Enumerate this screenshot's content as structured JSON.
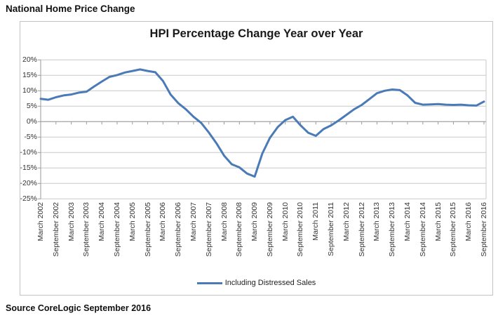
{
  "page": {
    "header_title": "National Home Price Change",
    "source_note": "Source CoreLogic September 2016"
  },
  "legend": {
    "label": "Including Distressed Sales"
  },
  "colors": {
    "series_line": "#4a7bb7",
    "gridline": "#c9c9c9",
    "axis": "#9a9a9a",
    "frame_border": "#c3c3c3",
    "text": "#333333"
  },
  "chart_data": {
    "type": "line",
    "title": "HPI Percentage Change Year over Year",
    "legend_position": "bottom",
    "grid": true,
    "ylim": [
      -25,
      20
    ],
    "y_tick_step": 5,
    "y_axis_format": "percent",
    "y_tick_labels": [
      "20%",
      "15%",
      "10%",
      "5%",
      "0%",
      "-5%",
      "-10%",
      "-15%",
      "-20%",
      "-25%"
    ],
    "x_tick_labels": [
      "March 2002",
      "September 2002",
      "March 2003",
      "September 2003",
      "March 2004",
      "September 2004",
      "March 2005",
      "September 2005",
      "March 2006",
      "September 2006",
      "March 2007",
      "September 2007",
      "March 2008",
      "September 2008",
      "March 2009",
      "September 2009",
      "March 2010",
      "September 2010",
      "March 2011",
      "September 2011",
      "March 2012",
      "September 2012",
      "March 2013",
      "September 2013",
      "March 2014",
      "September 2014",
      "March 2015",
      "September 2015",
      "March 2016",
      "September 2016"
    ],
    "series": [
      {
        "name": "Including Distressed Sales",
        "color": "#4a7bb7",
        "x": [
          "Mar 2002",
          "Jun 2002",
          "Sep 2002",
          "Dec 2002",
          "Mar 2003",
          "Jun 2003",
          "Sep 2003",
          "Dec 2003",
          "Mar 2004",
          "Jun 2004",
          "Sep 2004",
          "Dec 2004",
          "Mar 2005",
          "Jun 2005",
          "Sep 2005",
          "Dec 2005",
          "Mar 2006",
          "Jun 2006",
          "Sep 2006",
          "Dec 2006",
          "Mar 2007",
          "Jun 2007",
          "Sep 2007",
          "Dec 2007",
          "Mar 2008",
          "Jun 2008",
          "Sep 2008",
          "Dec 2008",
          "Mar 2009",
          "Jun 2009",
          "Sep 2009",
          "Dec 2009",
          "Mar 2010",
          "Jun 2010",
          "Sep 2010",
          "Dec 2010",
          "Mar 2011",
          "Jun 2011",
          "Sep 2011",
          "Dec 2011",
          "Mar 2012",
          "Jun 2012",
          "Sep 2012",
          "Dec 2012",
          "Mar 2013",
          "Jun 2013",
          "Sep 2013",
          "Dec 2013",
          "Mar 2014",
          "Jun 2014",
          "Sep 2014",
          "Dec 2014",
          "Mar 2015",
          "Jun 2015",
          "Sep 2015",
          "Dec 2015",
          "Mar 2016",
          "Jun 2016",
          "Sep 2016"
        ],
        "values": [
          7.4,
          7.1,
          7.9,
          8.5,
          8.8,
          9.4,
          9.7,
          11.4,
          13.0,
          14.5,
          15.1,
          15.9,
          16.4,
          16.9,
          16.4,
          16.0,
          13.2,
          8.8,
          6.0,
          4.0,
          1.6,
          -0.4,
          -3.5,
          -7.0,
          -11.0,
          -13.8,
          -14.8,
          -16.8,
          -17.8,
          -10.3,
          -5.2,
          -1.8,
          0.5,
          1.6,
          -1.2,
          -3.6,
          -4.6,
          -2.4,
          -1.2,
          0.4,
          2.2,
          4.0,
          5.4,
          7.3,
          9.2,
          10.0,
          10.4,
          10.2,
          8.5,
          6.1,
          5.5,
          5.6,
          5.7,
          5.5,
          5.4,
          5.5,
          5.3,
          5.2,
          6.5
        ]
      }
    ]
  }
}
